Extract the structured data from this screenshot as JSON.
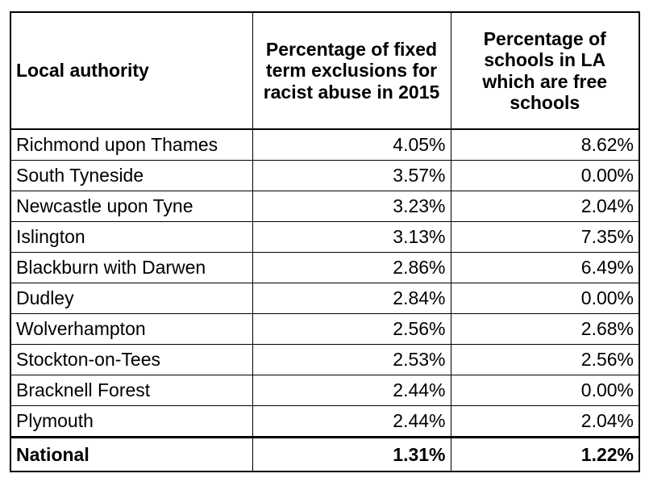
{
  "table": {
    "headers": [
      "Local authority",
      "Percentage of fixed term exclusions for racist abuse in 2015",
      "Percentage of schools in LA which are free schools"
    ],
    "rows": [
      [
        "Richmond upon Thames",
        "4.05%",
        "8.62%"
      ],
      [
        "South Tyneside",
        "3.57%",
        "0.00%"
      ],
      [
        "Newcastle upon Tyne",
        "3.23%",
        "2.04%"
      ],
      [
        "Islington",
        "3.13%",
        "7.35%"
      ],
      [
        "Blackburn with Darwen",
        "2.86%",
        "6.49%"
      ],
      [
        "Dudley",
        "2.84%",
        "0.00%"
      ],
      [
        "Wolverhampton",
        "2.56%",
        "2.68%"
      ],
      [
        "Stockton-on-Tees",
        "2.53%",
        "2.56%"
      ],
      [
        "Bracknell Forest",
        "2.44%",
        "0.00%"
      ],
      [
        "Plymouth",
        "2.44%",
        "2.04%"
      ]
    ],
    "total": [
      "National",
      "1.31%",
      "1.22%"
    ]
  }
}
